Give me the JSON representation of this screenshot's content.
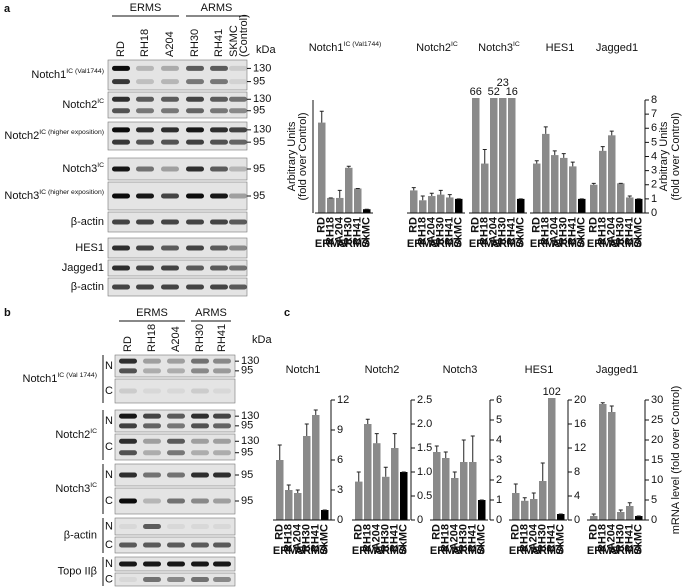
{
  "panel_labels": [
    "a",
    "b",
    "c"
  ],
  "blots": [
    {
      "groups": [
        "ERMS",
        "ARMS"
      ],
      "lanes": [
        "RD",
        "RH18",
        "A204",
        "RH30",
        "RH41",
        "SKMC"
      ],
      "lane_note": "(Control)",
      "unit": "kDa",
      "rows": [
        {
          "name": "Notch1",
          "sup": "IC (Val1744)",
          "markers": [
            130,
            95
          ]
        },
        {
          "name": "Notch2",
          "sup": "IC",
          "markers": [
            130,
            95
          ]
        },
        {
          "name": "Notch2",
          "sup": "IC (higher exposition)",
          "markers": [
            130,
            95
          ]
        },
        {
          "name": "Notch3",
          "sup": "IC",
          "markers": [
            95
          ]
        },
        {
          "name": "Notch3",
          "sup": "IC (higher exposition)",
          "markers": [
            95
          ]
        },
        {
          "name": "β-actin"
        },
        {
          "name": "HES1"
        },
        {
          "name": "Jagged1"
        },
        {
          "name": "β-actin"
        }
      ]
    },
    {
      "groups": [
        "ERMS",
        "ARMS"
      ],
      "lanes": [
        "RD",
        "RH18",
        "A204",
        "RH30",
        "RH41"
      ],
      "unit": "kDa",
      "rows": [
        {
          "name": "Notch1",
          "sup": "IC (Val 1744)",
          "fractions": [
            {
              "name": "N",
              "markers": [
                130,
                95
              ]
            },
            {
              "name": "C"
            }
          ]
        },
        {
          "name": "Notch2",
          "sup": "IC",
          "fractions": [
            {
              "name": "N",
              "markers": [
                130,
                95
              ]
            },
            {
              "name": "C",
              "markers": [
                130,
                95
              ]
            }
          ]
        },
        {
          "name": "Notch3",
          "sup": "IC",
          "fractions": [
            {
              "name": "N",
              "markers": [
                95
              ]
            },
            {
              "name": "C",
              "markers": [
                95
              ]
            }
          ]
        },
        {
          "name": "β-actin",
          "fractions": [
            {
              "name": "N"
            },
            {
              "name": "C"
            }
          ]
        },
        {
          "name": "Topo IIβ",
          "fractions": [
            {
              "name": "N"
            },
            {
              "name": "C"
            }
          ]
        }
      ]
    }
  ],
  "chart_data": [
    {
      "type": "bar",
      "title": "Notch1",
      "title_sup": "IC (Val1744)",
      "categories": [
        "RD",
        "RH18",
        "A204",
        "RH30",
        "RH41",
        "SkMC"
      ],
      "groups": [
        "ERMS",
        "ARMS"
      ],
      "values": [
        24,
        4,
        4,
        12,
        6.5,
        1
      ],
      "errors": [
        3,
        0,
        2,
        0.4,
        0,
        0
      ],
      "colors": [
        "#8a8a8a",
        "#8a8a8a",
        "#8a8a8a",
        "#8a8a8a",
        "#8a8a8a",
        "#000000"
      ],
      "ylim": [
        0,
        30
      ],
      "ylabel": [
        "Arbitrary Units",
        "(fold over Control)"
      ]
    },
    {
      "type": "bar",
      "title": "Notch2",
      "title_sup": "IC",
      "categories": [
        "RD",
        "RH18",
        "A204",
        "RH30",
        "RH41",
        "SkMC"
      ],
      "groups": [
        "ERMS",
        "ARMS"
      ],
      "values": [
        1.6,
        0.9,
        1.2,
        1.3,
        1.1,
        1
      ],
      "errors": [
        0.2,
        0.3,
        0.2,
        0.3,
        0.2,
        0
      ],
      "colors": [
        "#8a8a8a",
        "#8a8a8a",
        "#8a8a8a",
        "#8a8a8a",
        "#8a8a8a",
        "#000000"
      ],
      "ylim": [
        0,
        8
      ]
    },
    {
      "type": "bar",
      "title": "Notch3",
      "title_sup": "IC",
      "categories": [
        "RD",
        "RH18",
        "A204",
        "RH30",
        "RH41",
        "SkMC"
      ],
      "groups": [
        "ERMS",
        "ARMS"
      ],
      "values": [
        66,
        3.5,
        52,
        23,
        16,
        1
      ],
      "value_labels": [
        "66",
        null,
        "52",
        "23",
        "16",
        null
      ],
      "errors": [
        0,
        1,
        0,
        0,
        0,
        0
      ],
      "colors": [
        "#8a8a8a",
        "#8a8a8a",
        "#8a8a8a",
        "#8a8a8a",
        "#8a8a8a",
        "#000000"
      ],
      "ylim": [
        0,
        8
      ]
    },
    {
      "type": "bar",
      "title": "HES1",
      "categories": [
        "RD",
        "RH18",
        "A204",
        "RH30",
        "RH41",
        "SkMC"
      ],
      "groups": [
        "ERMS",
        "ARMS"
      ],
      "values": [
        3.5,
        5.6,
        4.1,
        3.9,
        3.3,
        1
      ],
      "errors": [
        0.2,
        0.5,
        0.3,
        0.3,
        0.3,
        0
      ],
      "colors": [
        "#8a8a8a",
        "#8a8a8a",
        "#8a8a8a",
        "#8a8a8a",
        "#8a8a8a",
        "#000000"
      ],
      "ylim": [
        0,
        8
      ]
    },
    {
      "type": "bar",
      "title": "Jagged1",
      "categories": [
        "RD",
        "RH18",
        "A204",
        "RH30",
        "RH41",
        "SkMC"
      ],
      "groups": [
        "ERMS",
        "ARMS"
      ],
      "values": [
        2,
        4.4,
        5.5,
        2.1,
        1.1,
        1
      ],
      "errors": [
        0.1,
        0.3,
        0.3,
        0,
        0.1,
        0
      ],
      "colors": [
        "#8a8a8a",
        "#8a8a8a",
        "#8a8a8a",
        "#8a8a8a",
        "#8a8a8a",
        "#000000"
      ],
      "ylim": [
        0,
        8
      ],
      "yticks": [
        0,
        1,
        2,
        3,
        4,
        5,
        6,
        7,
        8
      ],
      "ylabel": [
        "Arbitrary Units",
        "(fold over Control)"
      ]
    },
    {
      "type": "bar",
      "title": "Notch1",
      "categories": [
        "RD",
        "RH18",
        "A204",
        "RH30",
        "RH41",
        "SkMC"
      ],
      "groups": [
        "ERMS",
        "ARMS"
      ],
      "values": [
        6,
        3,
        2.7,
        8.4,
        10.5,
        1
      ],
      "errors": [
        1.5,
        0.5,
        0.3,
        1.2,
        0.5,
        0
      ],
      "colors": [
        "#8a8a8a",
        "#8a8a8a",
        "#8a8a8a",
        "#8a8a8a",
        "#8a8a8a",
        "#000000"
      ],
      "ylim": [
        0,
        12
      ],
      "yticks": [
        0,
        3,
        6,
        9,
        12
      ]
    },
    {
      "type": "bar",
      "title": "Notch2",
      "categories": [
        "RD",
        "RH18",
        "A204",
        "RH30",
        "RH41",
        "SkMC"
      ],
      "groups": [
        "ERMS",
        "ARMS"
      ],
      "values": [
        0.8,
        2.0,
        1.6,
        0.9,
        1.5,
        1
      ],
      "errors": [
        0.2,
        0.1,
        0.2,
        0.2,
        0.3,
        0
      ],
      "colors": [
        "#8a8a8a",
        "#8a8a8a",
        "#8a8a8a",
        "#8a8a8a",
        "#8a8a8a",
        "#000000"
      ],
      "ylim": [
        0,
        2.5
      ],
      "yticks": [
        0,
        0.5,
        {
          "value": 1,
          "label": "1.0"
        },
        1.5,
        {
          "value": 2,
          "label": "2.0"
        },
        2.5
      ]
    },
    {
      "type": "bar",
      "title": "Notch3",
      "categories": [
        "RD",
        "RH18",
        "A204",
        "RH30",
        "RH41",
        "SkMC"
      ],
      "groups": [
        "ERMS",
        "ARMS"
      ],
      "values": [
        3.4,
        3.1,
        2.1,
        2.9,
        2.9,
        1
      ],
      "errors": [
        0.3,
        0.3,
        0.3,
        1.1,
        1.3,
        0
      ],
      "colors": [
        "#8a8a8a",
        "#8a8a8a",
        "#8a8a8a",
        "#8a8a8a",
        "#8a8a8a",
        "#000000"
      ],
      "ylim": [
        0,
        6
      ],
      "yticks": [
        0,
        1,
        2,
        3,
        4,
        5,
        6
      ]
    },
    {
      "type": "bar",
      "title": "HES1",
      "categories": [
        "RD",
        "RH18",
        "A204",
        "RH30",
        "RH41",
        "SkMC"
      ],
      "groups": [
        "ERMS",
        "ARMS"
      ],
      "values": [
        4.5,
        3.2,
        3.5,
        6.5,
        102,
        1
      ],
      "value_labels": [
        null,
        null,
        null,
        null,
        "102",
        null
      ],
      "errors": [
        1.5,
        0.5,
        1,
        3,
        0,
        0
      ],
      "colors": [
        "#8a8a8a",
        "#8a8a8a",
        "#8a8a8a",
        "#8a8a8a",
        "#8a8a8a",
        "#000000"
      ],
      "ylim": [
        0,
        20
      ],
      "yticks": [
        0,
        4,
        8,
        12,
        16,
        20
      ]
    },
    {
      "type": "bar",
      "title": "Jagged1",
      "categories": [
        "RD",
        "RH18",
        "A204",
        "RH30",
        "RH41",
        "SkMC"
      ],
      "groups": [
        "ERMS",
        "ARMS"
      ],
      "values": [
        1,
        29,
        27,
        2,
        3.5,
        1
      ],
      "errors": [
        0.5,
        0.3,
        1.5,
        0.5,
        0.8,
        0
      ],
      "colors": [
        "#8a8a8a",
        "#8a8a8a",
        "#8a8a8a",
        "#8a8a8a",
        "#8a8a8a",
        "#000000"
      ],
      "ylim": [
        0,
        30
      ],
      "yticks": [
        0,
        5,
        10,
        15,
        20,
        25,
        30
      ],
      "ylabel": [
        "mRNA level (fold over Control)"
      ]
    }
  ]
}
